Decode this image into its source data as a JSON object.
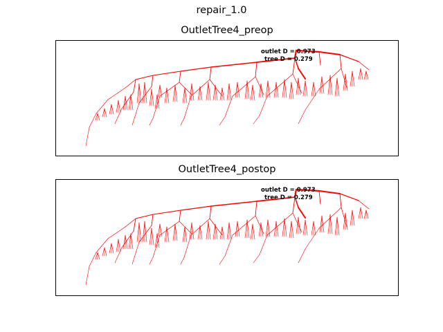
{
  "figure": {
    "suptitle": "repair_1.0"
  },
  "panels": [
    {
      "title": "OutletTree4_preop",
      "annotation_line1": "outlet D = 0.973",
      "annotation_line2": "tree D = 0.279",
      "tree_color": "#ff0000"
    },
    {
      "title": "OutletTree4_postop",
      "annotation_line1": "outlet D = 0.973",
      "annotation_line2": "tree D = 0.279",
      "tree_color": "#ff0000"
    }
  ]
}
